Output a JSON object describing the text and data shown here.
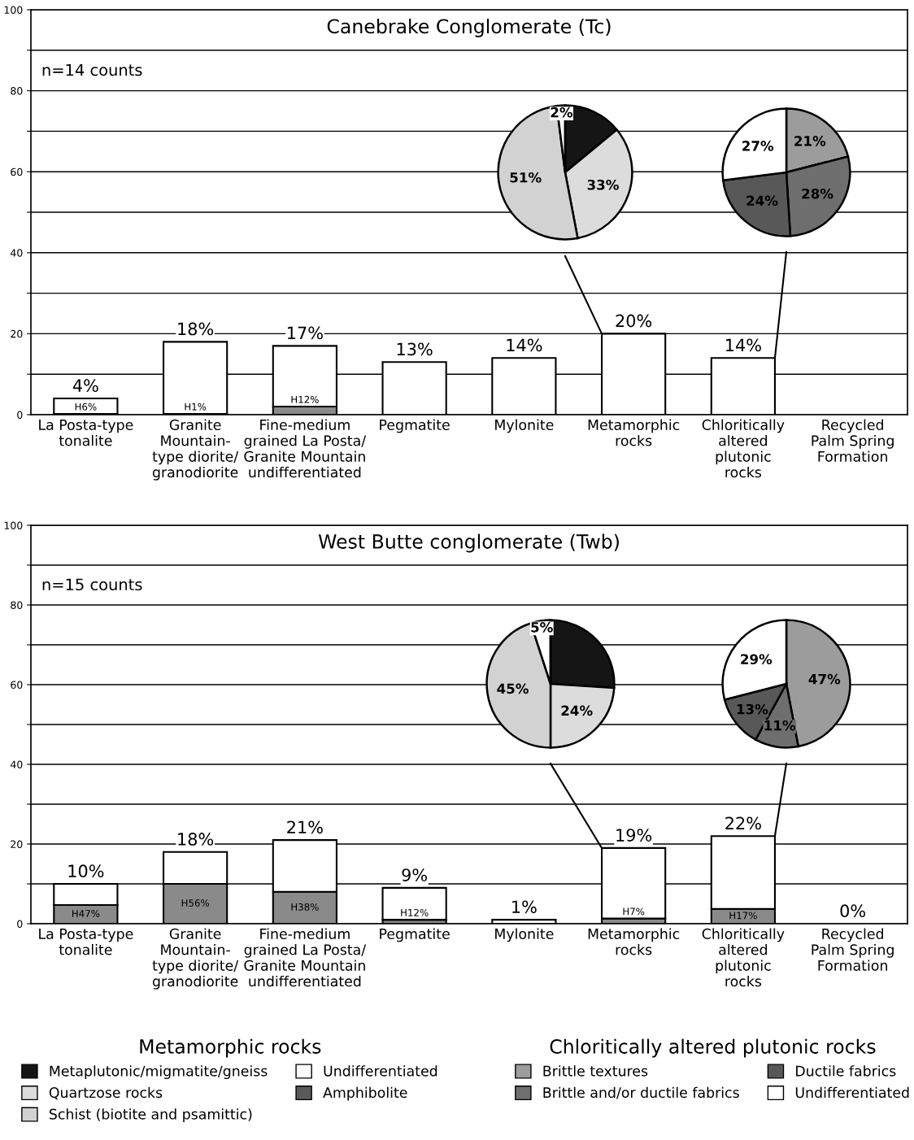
{
  "chart_data": [
    {
      "type": "bar",
      "title": "Canebrake Conglomerate (Tc)",
      "stacked": true,
      "categories": [
        "La Posta-type\ntonalite",
        "Granite\nMountain-\ntype diorite/\ngranodiorite",
        "Fine-medium\ngrained La Posta/\nGranite Mountain\nundifferentiated",
        "Pegmatite",
        "Mylonite",
        "Metamorphic\nrocks",
        "Chloritically\naltered\nplutonic\nrocks",
        "Recycled\nPalm Spring\nFormation"
      ],
      "series": [
        {
          "color": "#8a8a8a",
          "values": [
            0.2,
            0.2,
            2,
            0,
            0,
            0,
            0,
            0
          ],
          "value_labels": [
            "H6%",
            "H1%",
            "H12%",
            null,
            null,
            null,
            null,
            null
          ]
        },
        {
          "color": "#ffffff",
          "values": [
            3.8,
            17.8,
            15,
            13,
            14,
            20,
            14,
            0
          ]
        }
      ],
      "totals": [
        "4%",
        "18%",
        "17%",
        "13%",
        "14%",
        "20%",
        "14%",
        null
      ],
      "ylim": [
        0,
        100
      ],
      "yticks": [
        0,
        {
          "value": 10,
          "label": null
        },
        20,
        {
          "value": 30,
          "label": null
        },
        40,
        {
          "value": 50,
          "label": null
        },
        60,
        {
          "value": 70,
          "label": null
        },
        80,
        {
          "value": 90,
          "label": null
        },
        100
      ],
      "grid": "y",
      "annotations": [
        "n=14 counts"
      ]
    },
    {
      "type": "pie",
      "categories": [
        "Metaplutonic/migmatite/gneiss",
        "Quartzose rocks",
        "Schist (biotite and psamittic)",
        "Undifferentiated",
        "Amphibolite"
      ],
      "values": [
        14,
        33,
        51,
        2,
        0
      ],
      "colors": [
        "#151515",
        "#dcdcdc",
        "#d2d2d2",
        "#ffffff",
        "#5a5a5a"
      ],
      "value_labels": [
        null,
        "33%",
        "51%",
        "2%",
        null
      ],
      "legend": "bottom",
      "legend_title": "Metamorphic rocks"
    },
    {
      "type": "pie",
      "categories": [
        "Brittle textures",
        "Brittle and/or ductile fabrics",
        "Ductile fabrics",
        "Undifferentiated"
      ],
      "values": [
        21,
        28,
        24,
        27
      ],
      "colors": [
        "#9c9c9c",
        "#6e6e6e",
        "#585858",
        "#ffffff"
      ],
      "value_labels": [
        "21%",
        "28%",
        "24%",
        "27%"
      ],
      "legend": "bottom",
      "legend_title": "Chloritically altered plutonic rocks"
    },
    {
      "type": "bar",
      "title": "West Butte conglomerate (Twb)",
      "stacked": true,
      "categories": [
        "La Posta-type\ntonalite",
        "Granite\nMountain-\ntype diorite/\ngranodiorite",
        "Fine-medium\ngrained La Posta/\nGranite Mountain\nundifferentiated",
        "Pegmatite",
        "Mylonite",
        "Metamorphic\nrocks",
        "Chloritically\naltered\nplutonic\nrocks",
        "Recycled\nPalm Spring\nFormation"
      ],
      "series": [
        {
          "color": "#8a8a8a",
          "values": [
            4.7,
            10,
            8,
            1,
            0,
            1.3,
            3.7,
            0
          ],
          "value_labels": [
            "H47%",
            "H56%",
            "H38%",
            "H12%",
            null,
            "H7%",
            "H17%",
            null
          ]
        },
        {
          "color": "#ffffff",
          "values": [
            5.3,
            8,
            13,
            8,
            1,
            17.7,
            18.3,
            0
          ]
        }
      ],
      "totals": [
        "10%",
        "18%",
        "21%",
        "9%",
        "1%",
        "19%",
        "22%",
        "0%"
      ],
      "ylim": [
        0,
        100
      ],
      "yticks": [
        0,
        {
          "value": 10,
          "label": null
        },
        20,
        {
          "value": 30,
          "label": null
        },
        40,
        {
          "value": 50,
          "label": null
        },
        60,
        {
          "value": 70,
          "label": null
        },
        80,
        {
          "value": 90,
          "label": null
        },
        100
      ],
      "grid": "y",
      "annotations": [
        "n=15 counts"
      ]
    },
    {
      "type": "pie",
      "categories": [
        null,
        null,
        null,
        null,
        null
      ],
      "values": [
        26,
        24,
        45,
        5,
        0
      ],
      "colors": [
        "#151515",
        "#dcdcdc",
        "#d2d2d2",
        "#ffffff",
        "#5a5a5a"
      ],
      "value_labels": [
        null,
        "24%",
        "45%",
        "5%",
        null
      ],
      "legend": false
    },
    {
      "type": "pie",
      "categories": [
        null,
        null,
        null,
        null
      ],
      "values": [
        47,
        11,
        13,
        29
      ],
      "colors": [
        "#9c9c9c",
        "#6e6e6e",
        "#585858",
        "#ffffff"
      ],
      "value_labels": [
        "47%",
        "11%",
        "13%",
        "29%"
      ],
      "legend": false
    }
  ]
}
